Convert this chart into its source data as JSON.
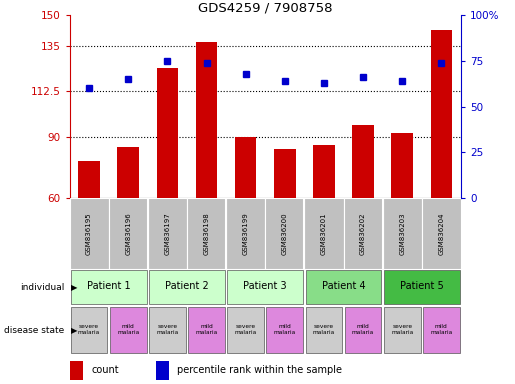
{
  "title": "GDS4259 / 7908758",
  "samples": [
    "GSM836195",
    "GSM836196",
    "GSM836197",
    "GSM836198",
    "GSM836199",
    "GSM836200",
    "GSM836201",
    "GSM836202",
    "GSM836203",
    "GSM836204"
  ],
  "bar_values": [
    78,
    85,
    124,
    137,
    90,
    84,
    86,
    96,
    92,
    143
  ],
  "percentile_values": [
    60,
    65,
    75,
    74,
    68,
    64,
    63,
    66,
    64,
    74
  ],
  "ylim_left": [
    60,
    150
  ],
  "ylim_right": [
    0,
    100
  ],
  "yticks_left": [
    60,
    90,
    112.5,
    135,
    150
  ],
  "yticks_right": [
    0,
    25,
    50,
    75,
    100
  ],
  "ytick_labels_left": [
    "60",
    "90",
    "112.5",
    "135",
    "150"
  ],
  "ytick_labels_right": [
    "0",
    "25",
    "50",
    "75",
    "100%"
  ],
  "bar_color": "#cc0000",
  "dot_color": "#0000cc",
  "patients": [
    {
      "label": "Patient 1",
      "cols": [
        0,
        1
      ],
      "color": "#ccffcc"
    },
    {
      "label": "Patient 2",
      "cols": [
        2,
        3
      ],
      "color": "#ccffcc"
    },
    {
      "label": "Patient 3",
      "cols": [
        4,
        5
      ],
      "color": "#ccffcc"
    },
    {
      "label": "Patient 4",
      "cols": [
        6,
        7
      ],
      "color": "#88dd88"
    },
    {
      "label": "Patient 5",
      "cols": [
        8,
        9
      ],
      "color": "#44bb44"
    }
  ],
  "disease_states": [
    {
      "label": "severe\nmalaria",
      "col": 0,
      "color": "#cccccc"
    },
    {
      "label": "mild\nmalaria",
      "col": 1,
      "color": "#dd88dd"
    },
    {
      "label": "severe\nmalaria",
      "col": 2,
      "color": "#cccccc"
    },
    {
      "label": "mild\nmalaria",
      "col": 3,
      "color": "#dd88dd"
    },
    {
      "label": "severe\nmalaria",
      "col": 4,
      "color": "#cccccc"
    },
    {
      "label": "mild\nmalaria",
      "col": 5,
      "color": "#dd88dd"
    },
    {
      "label": "severe\nmalaria",
      "col": 6,
      "color": "#cccccc"
    },
    {
      "label": "mild\nmalaria",
      "col": 7,
      "color": "#dd88dd"
    },
    {
      "label": "severe\nmalaria",
      "col": 8,
      "color": "#cccccc"
    },
    {
      "label": "mild\nmalaria",
      "col": 9,
      "color": "#dd88dd"
    }
  ],
  "legend_count_color": "#cc0000",
  "legend_pct_color": "#0000cc",
  "row_label_individual": "individual",
  "row_label_disease": "disease state",
  "sample_bg_color": "#c0c0c0",
  "background_color": "#ffffff"
}
